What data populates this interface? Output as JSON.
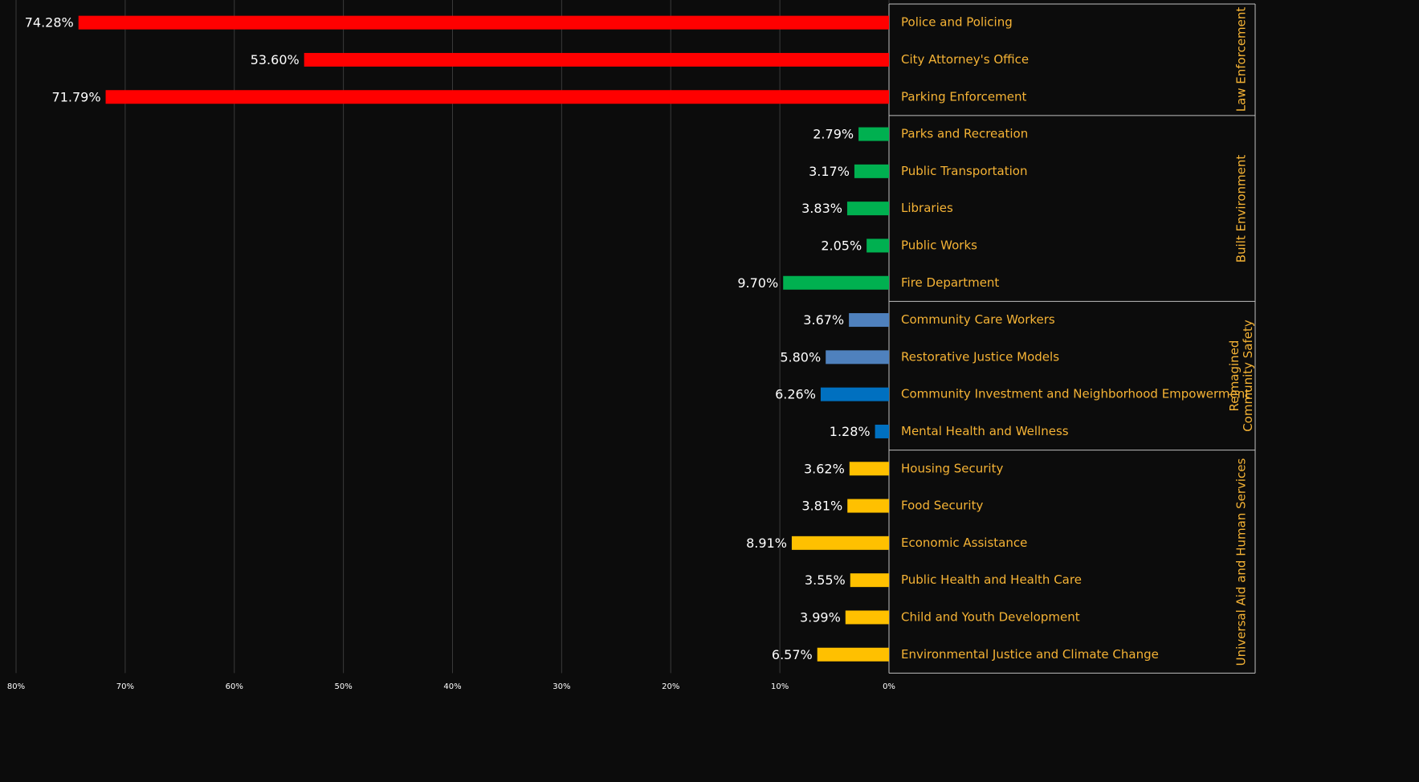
{
  "chart_data": {
    "type": "bar",
    "orientation": "horizontal",
    "x_reversed": true,
    "xlim": [
      0,
      80
    ],
    "xticks": [
      {
        "value": 80,
        "label": "80%"
      },
      {
        "value": 70,
        "label": "70%"
      },
      {
        "value": 60,
        "label": "60%"
      },
      {
        "value": 50,
        "label": "50%"
      },
      {
        "value": 40,
        "label": "40%"
      },
      {
        "value": 30,
        "label": "30%"
      },
      {
        "value": 20,
        "label": "20%"
      },
      {
        "value": 10,
        "label": "10%"
      },
      {
        "value": 0,
        "label": "0%"
      }
    ],
    "grid": true,
    "groups": [
      {
        "name": "Law Enforcement",
        "categories": [
          "Police and Policing",
          "City Attorney's Office",
          "Parking Enforcement"
        ],
        "values": [
          74.28,
          53.6,
          71.79
        ],
        "value_labels": [
          "74.28%",
          "53.60%",
          "71.79%"
        ],
        "colors": [
          "#ff0000",
          "#ff0000",
          "#ff0000"
        ]
      },
      {
        "name": "Built Environment",
        "categories": [
          "Parks and Recreation",
          "Public Transportation",
          "Libraries",
          "Public Works",
          "Fire Department"
        ],
        "values": [
          2.79,
          3.17,
          3.83,
          2.05,
          9.7
        ],
        "value_labels": [
          "2.79%",
          "3.17%",
          "3.83%",
          "2.05%",
          "9.70%"
        ],
        "colors": [
          "#00b050",
          "#00b050",
          "#00b050",
          "#00b050",
          "#00b050"
        ]
      },
      {
        "name": "Reimagined Community Safety",
        "categories": [
          "Community Care Workers",
          "Restorative Justice Models",
          "Community Investment and Neighborhood Empowerment",
          "Mental Health and Wellness"
        ],
        "values": [
          3.67,
          5.8,
          6.26,
          1.28
        ],
        "value_labels": [
          "3.67%",
          "5.80%",
          "6.26%",
          "1.28%"
        ],
        "colors": [
          "#4f81bd",
          "#4f81bd",
          "#0070c0",
          "#0070c0"
        ]
      },
      {
        "name": "Universal Aid and Human Services",
        "categories": [
          "Housing Security",
          "Food Security",
          "Economic Assistance",
          "Public Health and Health Care",
          "Child and Youth Development",
          "Environmental Justice and Climate Change"
        ],
        "values": [
          3.62,
          3.81,
          8.91,
          3.55,
          3.99,
          6.57
        ],
        "value_labels": [
          "3.62%",
          "3.81%",
          "8.91%",
          "3.55%",
          "3.99%",
          "6.57%"
        ],
        "colors": [
          "#ffc000",
          "#ffc000",
          "#ffc000",
          "#ffc000",
          "#ffc000",
          "#ffc000"
        ]
      }
    ]
  }
}
